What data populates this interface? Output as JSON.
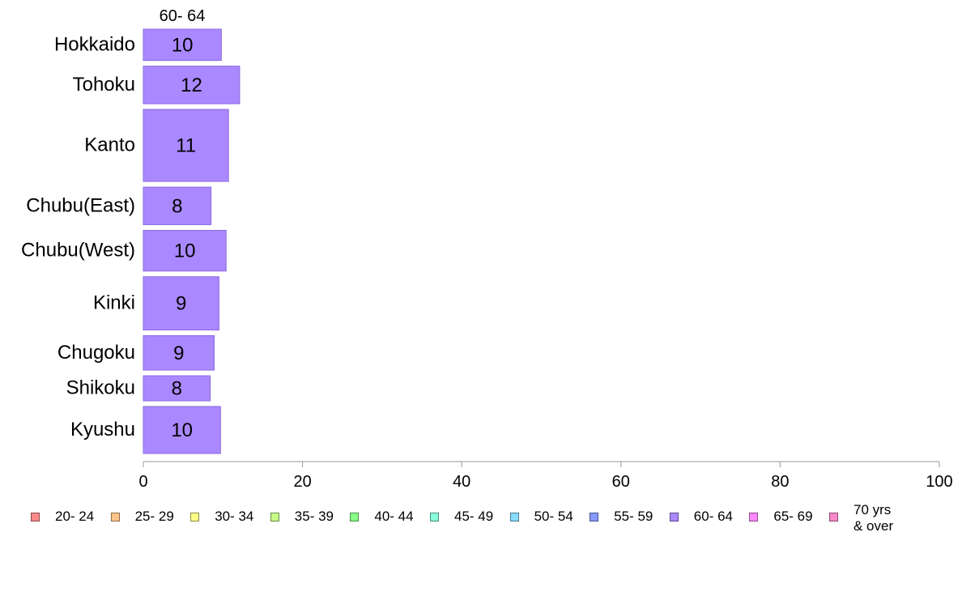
{
  "chart_data": {
    "type": "bar",
    "orientation": "horizontal",
    "stacked": true,
    "series_header": "60- 64",
    "categories": [
      "Hokkaido",
      "Tohoku",
      "Kanto",
      "Chubu(East)",
      "Chubu(West)",
      "Kinki",
      "Chugoku",
      "Shikoku",
      "Kyushu"
    ],
    "series": [
      {
        "name": "60- 64",
        "color": "#aa88ff",
        "values": [
          9.8,
          12.1,
          10.7,
          8.5,
          10.4,
          9.5,
          8.9,
          8.4,
          9.7
        ],
        "labels": [
          "10",
          "12",
          "11",
          "8",
          "10",
          "9",
          "9",
          "8",
          "10"
        ]
      }
    ],
    "category_weights": [
      1,
      1.2,
      2.3,
      1.2,
      1.3,
      1.7,
      1.1,
      0.8,
      1.5
    ],
    "xlim": [
      0,
      100
    ],
    "xticks": [
      "0",
      "20",
      "40",
      "60",
      "80",
      "100"
    ],
    "grid": false,
    "legend": {
      "position": "bottom",
      "items": [
        {
          "label": "20- 24",
          "color": "#ff8888"
        },
        {
          "label": "25- 29",
          "color": "#ffc488"
        },
        {
          "label": "30- 34",
          "color": "#ffff88"
        },
        {
          "label": "35- 39",
          "color": "#c4ff88"
        },
        {
          "label": "40- 44",
          "color": "#88ff88"
        },
        {
          "label": "45- 49",
          "color": "#88ffdd"
        },
        {
          "label": "50- 54",
          "color": "#88ddff"
        },
        {
          "label": "55- 59",
          "color": "#8899ff"
        },
        {
          "label": "60- 64",
          "color": "#aa88ff"
        },
        {
          "label": "65- 69",
          "color": "#ff88ff"
        },
        {
          "label": "70 yrs\n& over",
          "color": "#ff88cc"
        }
      ]
    }
  }
}
